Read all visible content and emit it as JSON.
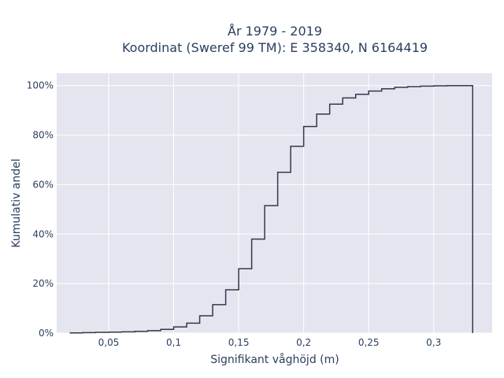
{
  "chart_data": {
    "type": "line",
    "subtype": "cumulative-step",
    "title_line1": "År 1979 - 2019",
    "title_line2": "Koordinat (Sweref 99 TM): E 358340, N 6164419",
    "xlabel": "Signifikant våghöjd (m)",
    "ylabel": "Kumulativ andel",
    "xlim": [
      0.01,
      0.345
    ],
    "ylim": [
      0,
      1.05
    ],
    "x_ticks": [
      0.05,
      0.1,
      0.15,
      0.2,
      0.25,
      0.3
    ],
    "x_tick_labels": [
      "0,05",
      "0,1",
      "0,15",
      "0,2",
      "0,25",
      "0,3"
    ],
    "y_ticks": [
      0,
      0.2,
      0.4,
      0.6,
      0.8,
      1.0
    ],
    "y_tick_labels": [
      "0%",
      "20%",
      "40%",
      "60%",
      "80%",
      "100%"
    ],
    "grid": true,
    "colors": {
      "plot_bg": "#e5e5f0",
      "grid": "#ffffff",
      "line": "#2f3a4c"
    },
    "x": [
      0.02,
      0.03,
      0.04,
      0.05,
      0.06,
      0.07,
      0.08,
      0.09,
      0.1,
      0.11,
      0.12,
      0.13,
      0.14,
      0.15,
      0.16,
      0.17,
      0.18,
      0.19,
      0.2,
      0.21,
      0.22,
      0.23,
      0.24,
      0.25,
      0.26,
      0.27,
      0.28,
      0.29,
      0.3,
      0.31,
      0.32,
      0.33
    ],
    "y": [
      0.001,
      0.002,
      0.003,
      0.004,
      0.005,
      0.007,
      0.01,
      0.015,
      0.025,
      0.04,
      0.07,
      0.115,
      0.175,
      0.26,
      0.38,
      0.515,
      0.65,
      0.755,
      0.835,
      0.885,
      0.925,
      0.95,
      0.965,
      0.978,
      0.987,
      0.993,
      0.996,
      0.998,
      0.999,
      1.0,
      1.0,
      0.0
    ]
  }
}
